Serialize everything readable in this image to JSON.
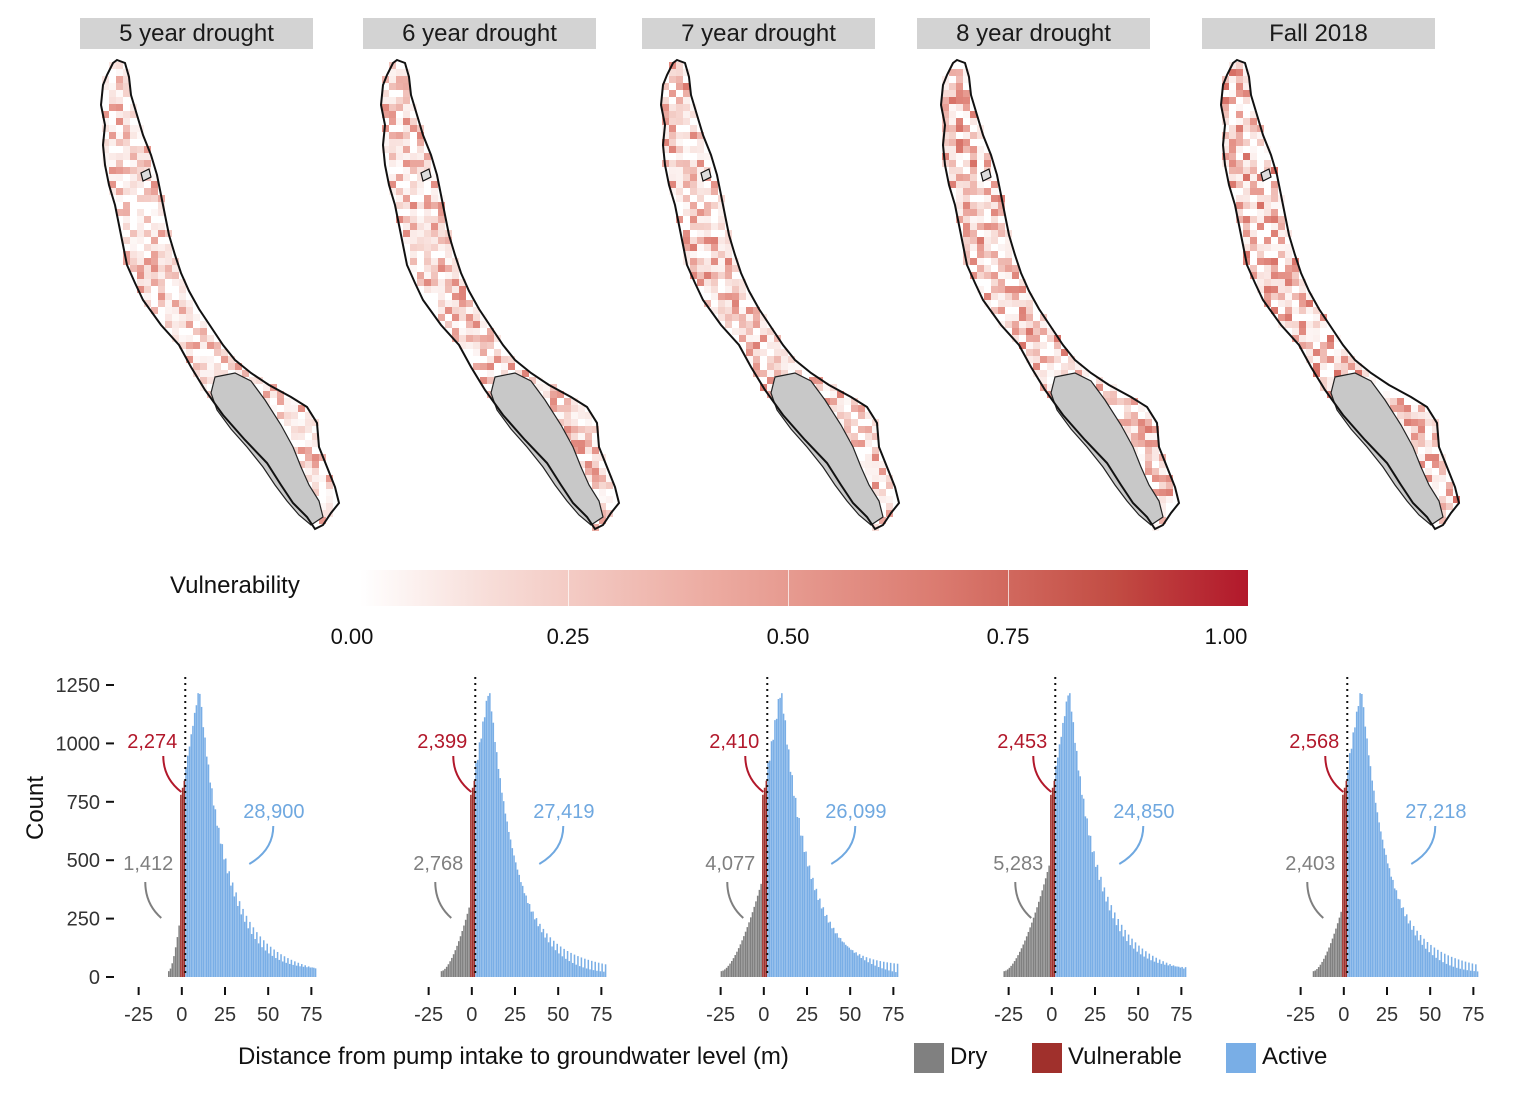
{
  "colors": {
    "dry": "#808080",
    "vulnerable": "#a0302c",
    "active": "#79aee6",
    "dry_label": "#7f7f7f",
    "vulnerable_label": "#b2182b",
    "active_label": "#6fa8e0",
    "strip": "#d3d3d3",
    "land_gray": "#c8c8c8"
  },
  "panels": [
    {
      "title": "5 year drought",
      "dry": "1,412",
      "vulnerable": "2,274",
      "active": "28,900"
    },
    {
      "title": "6 year drought",
      "dry": "2,768",
      "vulnerable": "2,399",
      "active": "27,419"
    },
    {
      "title": "7 year drought",
      "dry": "4,077",
      "vulnerable": "2,410",
      "active": "26,099"
    },
    {
      "title": "8 year drought",
      "dry": "5,283",
      "vulnerable": "2,453",
      "active": "24,850"
    },
    {
      "title": "Fall 2018",
      "dry": "2,403",
      "vulnerable": "2,568",
      "active": "27,218"
    }
  ],
  "colorbar": {
    "title": "Vulnerability",
    "ticks": [
      "0.00",
      "0.25",
      "0.50",
      "0.75",
      "1.00"
    ]
  },
  "chart_data": {
    "type": "bar",
    "xlabel": "Distance from pump intake to groundwater level (m)",
    "ylabel": "Count",
    "x_ticks": [
      "-25",
      "0",
      "25",
      "50",
      "75"
    ],
    "y_ticks": [
      "0",
      "250",
      "500",
      "750",
      "1000",
      "1250"
    ],
    "ylim": [
      0,
      1250
    ],
    "xlim": [
      -30,
      80
    ],
    "vline_x": 2,
    "legend": [
      {
        "name": "Dry"
      },
      {
        "name": "Vulnerable"
      },
      {
        "name": "Active"
      }
    ],
    "series": [
      {
        "name": "5 year drought",
        "dry_start": -8,
        "dry_peak": 250
      },
      {
        "name": "6 year drought",
        "dry_start": -18,
        "dry_peak": 300
      },
      {
        "name": "7 year drought",
        "dry_start": -25,
        "dry_peak": 400
      },
      {
        "name": "8 year drought",
        "dry_start": -28,
        "dry_peak": 480
      },
      {
        "name": "Fall 2018",
        "dry_start": -18,
        "dry_peak": 280
      }
    ]
  }
}
